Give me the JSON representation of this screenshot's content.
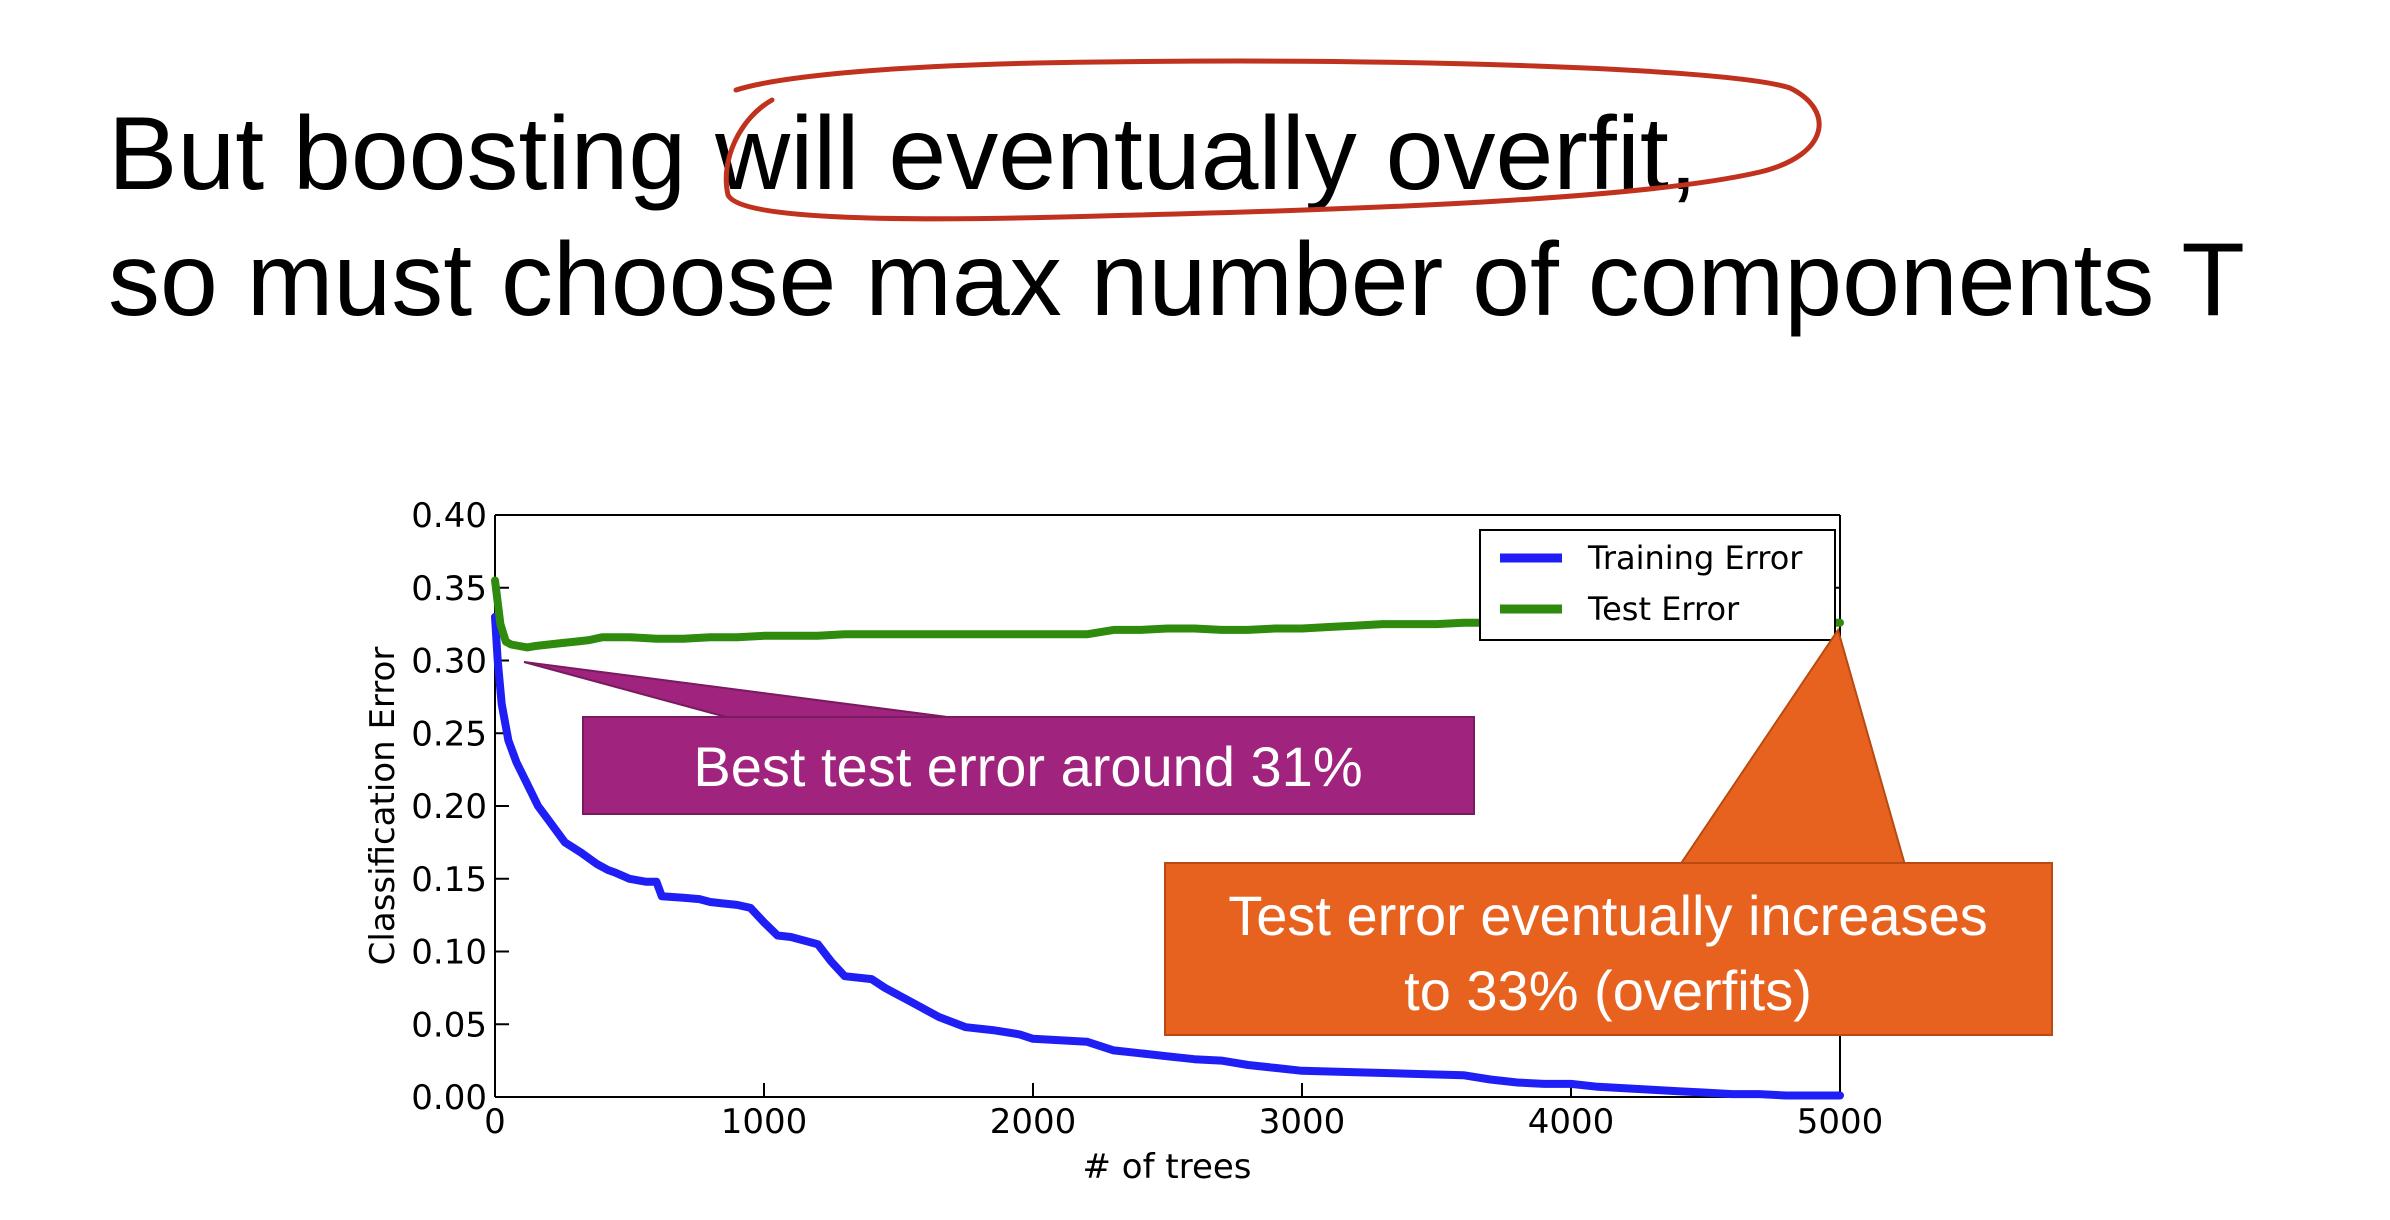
{
  "title": {
    "line1": "But boosting will eventually overfit,",
    "line2": "so must choose max number of components T"
  },
  "annotations": {
    "ink_circle_color": "#c0321e",
    "callout_best": {
      "text": "Best test error around 31%",
      "color": "#a0237e"
    },
    "callout_overfit": {
      "lines": [
        "Test error eventually increases",
        "to 33% (overfits)"
      ],
      "color": "#e8621f"
    }
  },
  "chart_data": {
    "type": "line",
    "xlabel": "# of trees",
    "ylabel": "Classification Error",
    "xlim": [
      0,
      5000
    ],
    "ylim": [
      0,
      0.4
    ],
    "xticks": [
      0,
      1000,
      2000,
      3000,
      4000,
      5000
    ],
    "yticks": [
      0.0,
      0.05,
      0.1,
      0.15,
      0.2,
      0.25,
      0.3,
      0.35,
      0.4
    ],
    "x_tick_labels": [
      "0",
      "1000",
      "2000",
      "3000",
      "4000",
      "5000"
    ],
    "y_tick_labels": [
      "0.00",
      "0.05",
      "0.10",
      "0.15",
      "0.20",
      "0.25",
      "0.30",
      "0.35",
      "0.40"
    ],
    "grid": false,
    "legend": "top-right",
    "series": [
      {
        "name": "Training Error",
        "color": "#1f1ff5",
        "x": [
          0,
          10,
          25,
          50,
          80,
          120,
          160,
          200,
          260,
          320,
          380,
          420,
          450,
          500,
          560,
          600,
          620,
          700,
          760,
          800,
          850,
          900,
          950,
          1000,
          1050,
          1100,
          1200,
          1250,
          1300,
          1400,
          1450,
          1550,
          1650,
          1750,
          1850,
          1950,
          2000,
          2100,
          2200,
          2300,
          2400,
          2500,
          2600,
          2700,
          2800,
          2900,
          3000,
          3200,
          3400,
          3600,
          3700,
          3800,
          3900,
          4000,
          4100,
          4200,
          4300,
          4400,
          4500,
          4600,
          4700,
          4800,
          4900,
          5000
        ],
        "y": [
          0.33,
          0.3,
          0.27,
          0.245,
          0.23,
          0.215,
          0.2,
          0.19,
          0.175,
          0.168,
          0.16,
          0.156,
          0.154,
          0.15,
          0.148,
          0.148,
          0.138,
          0.137,
          0.136,
          0.134,
          0.133,
          0.132,
          0.13,
          0.12,
          0.111,
          0.11,
          0.105,
          0.093,
          0.083,
          0.081,
          0.075,
          0.065,
          0.055,
          0.048,
          0.046,
          0.043,
          0.04,
          0.039,
          0.038,
          0.032,
          0.03,
          0.028,
          0.026,
          0.025,
          0.022,
          0.02,
          0.018,
          0.017,
          0.016,
          0.015,
          0.012,
          0.01,
          0.009,
          0.009,
          0.007,
          0.006,
          0.005,
          0.004,
          0.003,
          0.002,
          0.002,
          0.001,
          0.001,
          0.001
        ]
      },
      {
        "name": "Test Error",
        "color": "#2e8b0e",
        "x": [
          0,
          10,
          20,
          40,
          60,
          90,
          120,
          150,
          200,
          250,
          300,
          350,
          400,
          500,
          600,
          700,
          800,
          900,
          1000,
          1100,
          1200,
          1300,
          1400,
          1500,
          1600,
          1700,
          1800,
          1900,
          2000,
          2100,
          2200,
          2300,
          2400,
          2500,
          2600,
          2700,
          2800,
          2900,
          3000,
          3100,
          3200,
          3300,
          3400,
          3500,
          3600,
          3700,
          3800,
          3900,
          4000,
          4200,
          4400,
          4600,
          4800,
          5000
        ],
        "y": [
          0.355,
          0.34,
          0.325,
          0.313,
          0.311,
          0.31,
          0.309,
          0.31,
          0.311,
          0.312,
          0.313,
          0.314,
          0.316,
          0.316,
          0.315,
          0.315,
          0.316,
          0.316,
          0.317,
          0.317,
          0.317,
          0.318,
          0.318,
          0.318,
          0.318,
          0.318,
          0.318,
          0.318,
          0.318,
          0.318,
          0.318,
          0.321,
          0.321,
          0.322,
          0.322,
          0.321,
          0.321,
          0.322,
          0.322,
          0.323,
          0.324,
          0.325,
          0.325,
          0.325,
          0.326,
          0.326,
          0.326,
          0.326,
          0.326,
          0.326,
          0.326,
          0.326,
          0.326,
          0.326
        ]
      }
    ]
  }
}
